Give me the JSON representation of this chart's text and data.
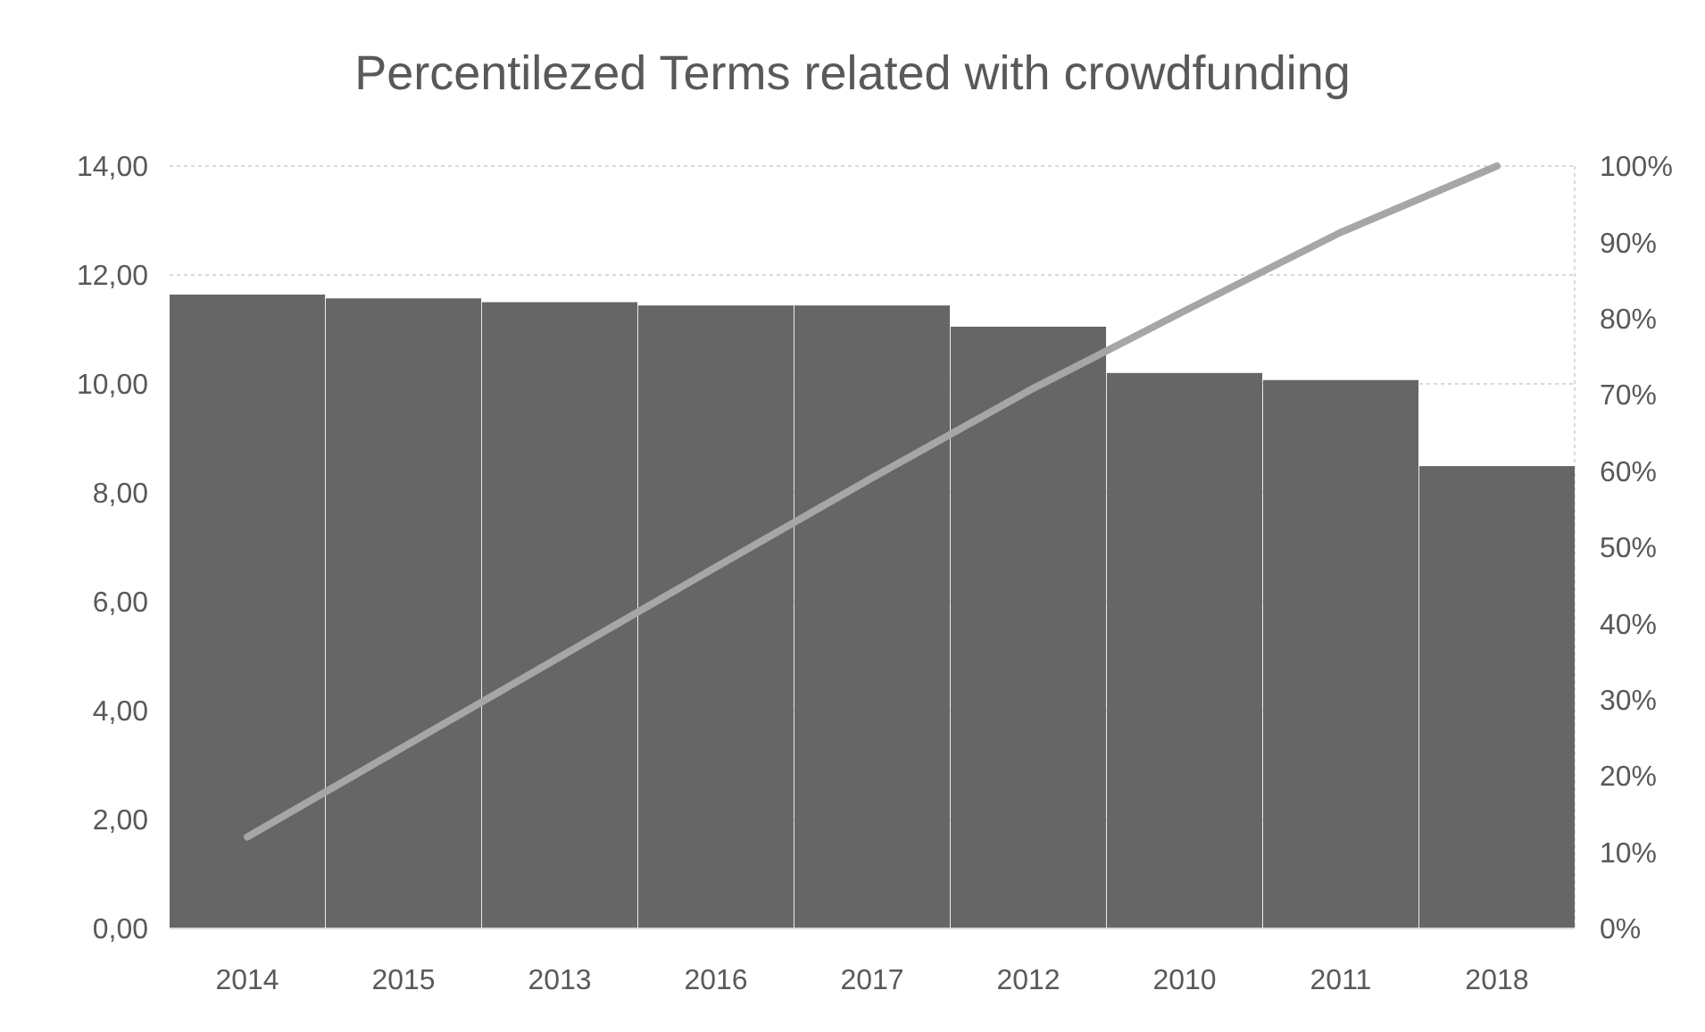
{
  "chart_data": {
    "type": "bar",
    "title": "Percentilezed Terms related with crowdfunding",
    "categories": [
      "2014",
      "2015",
      "2013",
      "2016",
      "2017",
      "2012",
      "2010",
      "2011",
      "2018"
    ],
    "series": [
      {
        "color": "#666666",
        "values": [
          11.64,
          11.57,
          11.5,
          11.44,
          11.44,
          11.05,
          10.2,
          10.07,
          8.49
        ]
      },
      {
        "type": "line",
        "axis": "y2",
        "color": "#a6a6a6",
        "values": [
          12.0,
          23.8,
          35.6,
          47.4,
          59.1,
          70.5,
          81.0,
          91.3,
          100
        ]
      }
    ],
    "ylim": [
      0,
      14
    ],
    "yticks": [
      {
        "value": 0,
        "label": "0,00"
      },
      {
        "value": 2,
        "label": "2,00"
      },
      {
        "value": 4,
        "label": "4,00"
      },
      {
        "value": 6,
        "label": "6,00"
      },
      {
        "value": 8,
        "label": "8,00"
      },
      {
        "value": 10,
        "label": "10,00"
      },
      {
        "value": 12,
        "label": "12,00"
      },
      {
        "value": 14,
        "label": "14,00"
      }
    ],
    "y2lim": [
      0,
      100
    ],
    "y2ticks": [
      {
        "value": 0,
        "label": "0%"
      },
      {
        "value": 10,
        "label": "10%"
      },
      {
        "value": 20,
        "label": "20%"
      },
      {
        "value": 30,
        "label": "30%"
      },
      {
        "value": 40,
        "label": "40%"
      },
      {
        "value": 50,
        "label": "50%"
      },
      {
        "value": 60,
        "label": "60%"
      },
      {
        "value": 70,
        "label": "70%"
      },
      {
        "value": 80,
        "label": "80%"
      },
      {
        "value": 90,
        "label": "90%"
      },
      {
        "value": 100,
        "label": "100%"
      }
    ],
    "grid": "y",
    "marker": "none",
    "line_style": "solid"
  }
}
